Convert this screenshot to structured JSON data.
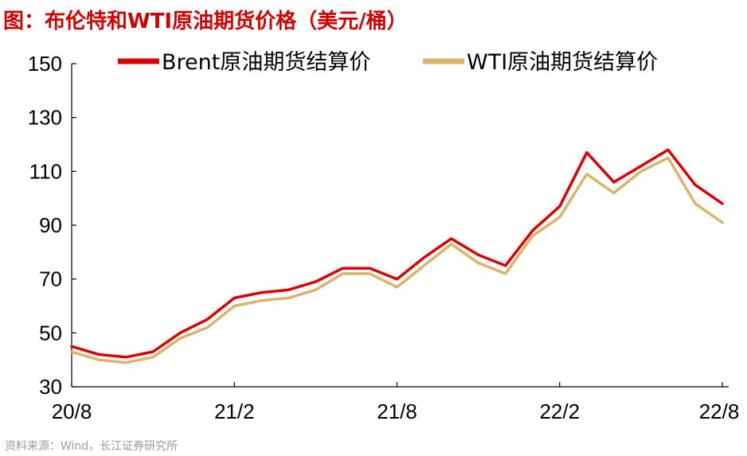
{
  "title": "图：布伦特和WTI原油期货价格（美元/桶）",
  "source": "资料来源：Wind，长江证券研究所",
  "chart_data": {
    "type": "line",
    "title": "图：布伦特和WTI原油期货价格（美元/桶）",
    "xlabel": "",
    "ylabel": "",
    "ylim": [
      30,
      150
    ],
    "yticks": [
      "30",
      "50",
      "70",
      "90",
      "110",
      "130",
      "150"
    ],
    "xticks": [
      "20/8",
      "21/2",
      "21/8",
      "22/2",
      "22/8"
    ],
    "legend_position": "top",
    "grid": false,
    "x": [
      "2020-08",
      "2020-09",
      "2020-10",
      "2020-11",
      "2020-12",
      "2021-01",
      "2021-02",
      "2021-03",
      "2021-04",
      "2021-05",
      "2021-06",
      "2021-07",
      "2021-08",
      "2021-09",
      "2021-10",
      "2021-11",
      "2021-12",
      "2022-01",
      "2022-02",
      "2022-03",
      "2022-04",
      "2022-05",
      "2022-06",
      "2022-07",
      "2022-08"
    ],
    "series": [
      {
        "name": "Brent原油期货结算价",
        "color": "#dc0000",
        "values": [
          45,
          42,
          41,
          43,
          50,
          55,
          63,
          65,
          66,
          69,
          74,
          74,
          70,
          78,
          85,
          79,
          75,
          88,
          97,
          117,
          106,
          112,
          118,
          105,
          98
        ]
      },
      {
        "name": "WTI原油期货结算价",
        "color": "#dbb46a",
        "values": [
          43,
          40,
          39,
          41,
          48,
          52,
          60,
          62,
          63,
          66,
          72,
          72,
          67,
          75,
          83,
          76,
          72,
          86,
          93,
          109,
          102,
          110,
          115,
          98,
          91
        ]
      }
    ]
  }
}
